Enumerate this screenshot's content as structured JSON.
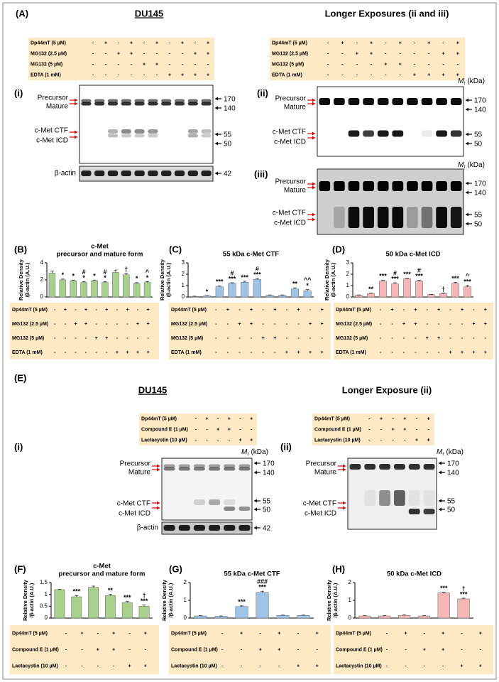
{
  "figure": {
    "A": {
      "label": "(A)",
      "title_left": "DU145",
      "title_right": "Longer Exposures (ii and iii)",
      "conditions_left": [
        {
          "label": "Dp44mT (5 µM)",
          "signs": [
            "-",
            "+",
            "-",
            "+",
            "-",
            "+",
            "-",
            "+",
            "-",
            "+"
          ]
        },
        {
          "label": "MG132 (2.5 µM)",
          "signs": [
            "-",
            "-",
            "+",
            "+",
            "-",
            "-",
            "-",
            "-",
            "+",
            "+"
          ]
        },
        {
          "label": "MG132 (5 µM)",
          "signs": [
            "-",
            "-",
            "-",
            "-",
            "+",
            "+",
            "-",
            "-",
            "-",
            "-"
          ]
        },
        {
          "label": "EDTA (1 mM)",
          "signs": [
            "-",
            "-",
            "-",
            "-",
            "-",
            "-",
            "+",
            "+",
            "+",
            "+"
          ]
        }
      ],
      "conditions_right": [
        {
          "label": "Dp44mT (5 µM)",
          "signs": [
            "-",
            "+",
            "-",
            "+",
            "-",
            "+",
            "-",
            "+",
            "-",
            "+"
          ]
        },
        {
          "label": "MG132 (2.5 µM)",
          "signs": [
            "-",
            "-",
            "+",
            "+",
            "-",
            "-",
            "-",
            "-",
            "+",
            "+"
          ]
        },
        {
          "label": "MG132 (5 µM)",
          "signs": [
            "-",
            "-",
            "-",
            "-",
            "+",
            "+",
            "-",
            "-",
            "-",
            "-"
          ]
        },
        {
          "label": "EDTA (1 mM)",
          "signs": [
            "-",
            "-",
            "-",
            "-",
            "-",
            "-",
            "+",
            "+",
            "+",
            "+"
          ]
        }
      ],
      "blot_i": {
        "label": "(i)",
        "bands": [
          "Precursor",
          "Mature",
          "c-Met CTF",
          "c-Met ICD"
        ],
        "markers": [
          170,
          140,
          55,
          50
        ],
        "actin_label": "β-actin",
        "actin_marker": 42
      },
      "blot_ii": {
        "label": "(ii)",
        "mr": {
          "symbol": "M",
          "sub": "r",
          "unit": " (kDa)"
        },
        "bands": [
          "Precursor",
          "Mature",
          "c-Met CTF",
          "c-Met ICD"
        ],
        "markers": [
          170,
          140,
          55,
          50
        ]
      },
      "blot_iii": {
        "label": "(iii)",
        "mr": {
          "symbol": "M",
          "sub": "r",
          "unit": " (kDa)"
        },
        "bands": [
          "Precursor",
          "Mature",
          "c-Met CTF",
          "c-Met ICD"
        ],
        "markers": [
          170,
          140,
          55,
          50
        ]
      }
    },
    "E": {
      "label": "(E)",
      "title_left": "DU145",
      "title_right": "Longer Exposure (ii)",
      "conditions_left": [
        {
          "label": "Dp44mT (5 µM)",
          "signs": [
            "-",
            "+",
            "-",
            "+",
            "-",
            "+"
          ]
        },
        {
          "label": "Compound E (1 µM)",
          "signs": [
            "-",
            "-",
            "+",
            "+",
            "-",
            "-"
          ]
        },
        {
          "label": "Lactacystin (10 µM)",
          "signs": [
            "-",
            "-",
            "-",
            "-",
            "+",
            "+"
          ]
        }
      ],
      "conditions_right": [
        {
          "label": "Dp44mT (5 µM)",
          "signs": [
            "-",
            "+",
            "-",
            "+",
            "-",
            "+"
          ]
        },
        {
          "label": "Compound E (1 µM)",
          "signs": [
            "-",
            "-",
            "+",
            "+",
            "-",
            "-"
          ]
        },
        {
          "label": "Lactacystin (10 µM)",
          "signs": [
            "-",
            "-",
            "-",
            "-",
            "+",
            "+"
          ]
        }
      ],
      "blot_i": {
        "label": "(i)",
        "mr": {
          "symbol": "M",
          "sub": "r",
          "unit": " (kDa)"
        },
        "bands": [
          "Precursor",
          "Mature",
          "c-Met CTF",
          "c-Met ICD"
        ],
        "markers": [
          170,
          140,
          55,
          50
        ],
        "actin_label": "β-actin",
        "actin_marker": 42
      },
      "blot_ii": {
        "label": "(ii)",
        "mr": {
          "symbol": "M",
          "sub": "r",
          "unit": " (kDa)"
        },
        "bands": [
          "Precursor",
          "Mature",
          "c-Met CTF",
          "c-Met ICD"
        ],
        "markers": [
          170,
          140,
          55,
          50
        ]
      }
    }
  },
  "chart_data": [
    {
      "type": "bar",
      "panel": "(B)",
      "title": [
        "c-Met",
        "precursor and mature form"
      ],
      "y_label": [
        "Relative Density",
        "/β-actin (A.U.)"
      ],
      "ylim": [
        0,
        4
      ],
      "yticks": [
        0,
        2,
        4
      ],
      "color": "#a9d18e",
      "values": [
        2.8,
        2.0,
        1.9,
        1.7,
        1.9,
        1.7,
        2.9,
        2.6,
        1.6,
        1.7
      ],
      "errors": [
        0.25,
        0.1,
        0.08,
        0.1,
        0.08,
        0.1,
        0.25,
        0.2,
        0.08,
        0.1
      ],
      "annotations": [
        [],
        [
          "*"
        ],
        [
          "*"
        ],
        [
          "#",
          "*"
        ],
        [
          "*"
        ],
        [
          "#",
          "*"
        ],
        [],
        [
          "†"
        ],
        [
          "*"
        ],
        [
          "^",
          "*"
        ]
      ],
      "conditions": [
        {
          "label": "Dp44mT (5 µM)",
          "signs": [
            "-",
            "+",
            "-",
            "+",
            "-",
            "+",
            "-",
            "+",
            "-",
            "+"
          ]
        },
        {
          "label": "MG132 (2.5 µM)",
          "signs": [
            "-",
            "-",
            "+",
            "+",
            "-",
            "-",
            "-",
            "-",
            "+",
            "+"
          ]
        },
        {
          "label": "MG132 (5 µM)",
          "signs": [
            "-",
            "-",
            "-",
            "-",
            "+",
            "+",
            "-",
            "-",
            "-",
            "-"
          ]
        },
        {
          "label": "EDTA (1 mM)",
          "signs": [
            "-",
            "-",
            "-",
            "-",
            "-",
            "-",
            "+",
            "+",
            "+",
            "+"
          ]
        }
      ]
    },
    {
      "type": "bar",
      "panel": "(C)",
      "title": "55 kDa c-Met CTF",
      "y_label": [
        "Relative Density",
        "/β-actin (A.U.)"
      ],
      "ylim": [
        0,
        3
      ],
      "yticks": [
        0,
        1,
        2,
        3
      ],
      "color": "#9dc3e6",
      "values": [
        0.05,
        0.1,
        0.9,
        1.2,
        1.3,
        1.55,
        0.15,
        0.15,
        0.7,
        0.55
      ],
      "errors": [
        0.02,
        0.02,
        0.08,
        0.05,
        0.08,
        0.08,
        0.03,
        0.03,
        0.1,
        0.1
      ],
      "annotations": [
        [],
        [
          "*"
        ],
        [
          "***"
        ],
        [
          "#",
          "***"
        ],
        [
          "***"
        ],
        [
          "#",
          "***"
        ],
        [],
        [],
        [
          "**"
        ],
        [
          "^^",
          "*"
        ]
      ],
      "conditions": [
        {
          "label": "Dp44mT (5 µM)",
          "signs": [
            "-",
            "+",
            "-",
            "+",
            "-",
            "+",
            "-",
            "+",
            "-",
            "+"
          ]
        },
        {
          "label": "MG132 (2.5 µM)",
          "signs": [
            "-",
            "-",
            "+",
            "+",
            "-",
            "-",
            "-",
            "-",
            "+",
            "+"
          ]
        },
        {
          "label": "MG132 (5 µM)",
          "signs": [
            "-",
            "-",
            "-",
            "-",
            "+",
            "+",
            "-",
            "-",
            "-",
            "-"
          ]
        },
        {
          "label": "EDTA (1 mM)",
          "signs": [
            "-",
            "-",
            "-",
            "-",
            "-",
            "-",
            "+",
            "+",
            "+",
            "+"
          ]
        }
      ]
    },
    {
      "type": "bar",
      "panel": "(D)",
      "title": "50 kDa c-Met ICD",
      "y_label": [
        "Relative Density",
        "/β-actin (A.U.)"
      ],
      "ylim": [
        0,
        3
      ],
      "yticks": [
        0,
        1,
        2,
        3
      ],
      "color": "#f4b6b6",
      "values": [
        0.15,
        0.3,
        1.4,
        1.15,
        1.6,
        1.4,
        0.2,
        0.3,
        1.2,
        0.9
      ],
      "errors": [
        0.03,
        0.03,
        0.08,
        0.1,
        0.05,
        0.08,
        0.03,
        0.05,
        0.08,
        0.1
      ],
      "annotations": [
        [],
        [
          "**"
        ],
        [
          "***"
        ],
        [
          "#",
          "***"
        ],
        [
          "***"
        ],
        [
          "#",
          "***"
        ],
        [],
        [
          "†"
        ],
        [
          "***"
        ],
        [
          "^",
          "***"
        ]
      ],
      "conditions": [
        {
          "label": "Dp44mT (5 µM)",
          "signs": [
            "-",
            "+",
            "-",
            "+",
            "-",
            "+",
            "-",
            "+",
            "-",
            "+"
          ]
        },
        {
          "label": "MG132 (2.5 µM)",
          "signs": [
            "-",
            "-",
            "+",
            "+",
            "-",
            "-",
            "-",
            "-",
            "+",
            "+"
          ]
        },
        {
          "label": "MG132 (5 µM)",
          "signs": [
            "-",
            "-",
            "-",
            "-",
            "+",
            "+",
            "-",
            "-",
            "-",
            "-"
          ]
        },
        {
          "label": "EDTA (1 mM)",
          "signs": [
            "-",
            "-",
            "-",
            "-",
            "-",
            "-",
            "+",
            "+",
            "+",
            "+"
          ]
        }
      ]
    },
    {
      "type": "bar",
      "panel": "(F)",
      "title": [
        "c-Met",
        "precursor and mature form"
      ],
      "y_label": [
        "Relative Density",
        "/β-actin (A.U.)"
      ],
      "ylim": [
        0,
        1.5
      ],
      "yticks": [
        0,
        0.5,
        1,
        1.5
      ],
      "color": "#a9d18e",
      "values": [
        1.2,
        0.9,
        1.3,
        0.95,
        0.65,
        0.5
      ],
      "errors": [
        0.02,
        0.05,
        0.05,
        0.05,
        0.05,
        0.05
      ],
      "annotations": [
        [],
        [
          "***"
        ],
        [],
        [
          "**"
        ],
        [
          "***"
        ],
        [
          "†",
          "***"
        ]
      ],
      "conditions": [
        {
          "label": "Dp44mT (5 µM)",
          "signs": [
            "-",
            "+",
            "-",
            "+",
            "-",
            "+"
          ]
        },
        {
          "label": "Compound E (1 µM)",
          "signs": [
            "-",
            "-",
            "+",
            "+",
            "-",
            "-"
          ]
        },
        {
          "label": "Lactacystin (10 µM)",
          "signs": [
            "-",
            "-",
            "-",
            "-",
            "+",
            "+"
          ]
        }
      ]
    },
    {
      "type": "bar",
      "panel": "(G)",
      "title": "55 kDa c-Met CTF",
      "y_label": [
        "Relative Density",
        "/β-actin (A.U.)"
      ],
      "ylim": [
        0,
        2
      ],
      "yticks": [
        0,
        1,
        2
      ],
      "color": "#9dc3e6",
      "values": [
        0.12,
        0.1,
        0.65,
        1.45,
        0.15,
        0.15
      ],
      "errors": [
        0.02,
        0.02,
        0.04,
        0.06,
        0.02,
        0.02
      ],
      "annotations": [
        [],
        [],
        [
          "***"
        ],
        [
          "###",
          "***"
        ],
        [],
        []
      ],
      "conditions": [
        {
          "label": "Dp44mT (5 µM)",
          "signs": [
            "-",
            "+",
            "-",
            "+",
            "-",
            "+"
          ]
        },
        {
          "label": "Compound E (1 µM)",
          "signs": [
            "-",
            "-",
            "+",
            "+",
            "-",
            "-"
          ]
        },
        {
          "label": "Lactacystin (10 µM)",
          "signs": [
            "-",
            "-",
            "-",
            "-",
            "+",
            "+"
          ]
        }
      ]
    },
    {
      "type": "bar",
      "panel": "(H)",
      "title": "50 kDa c-Met ICD",
      "y_label": [
        "Relative Density",
        "/β-actin (A.U.)"
      ],
      "ylim": [
        0,
        2
      ],
      "yticks": [
        0,
        1,
        2
      ],
      "color": "#f4b6b6",
      "values": [
        0.12,
        0.12,
        0.15,
        0.12,
        1.42,
        1.08
      ],
      "errors": [
        0.02,
        0.02,
        0.04,
        0.02,
        0.04,
        0.04
      ],
      "annotations": [
        [],
        [],
        [],
        [],
        [
          "***"
        ],
        [
          "†",
          "***"
        ]
      ],
      "conditions": [
        {
          "label": "Dp44mT (5 µM)",
          "signs": [
            "-",
            "+",
            "-",
            "+",
            "-",
            "+"
          ]
        },
        {
          "label": "Compound E (1 µM)",
          "signs": [
            "-",
            "-",
            "+",
            "+",
            "-",
            "-"
          ]
        },
        {
          "label": "Lactacystin (10 µM)",
          "signs": [
            "-",
            "-",
            "-",
            "-",
            "+",
            "+"
          ]
        }
      ]
    }
  ]
}
